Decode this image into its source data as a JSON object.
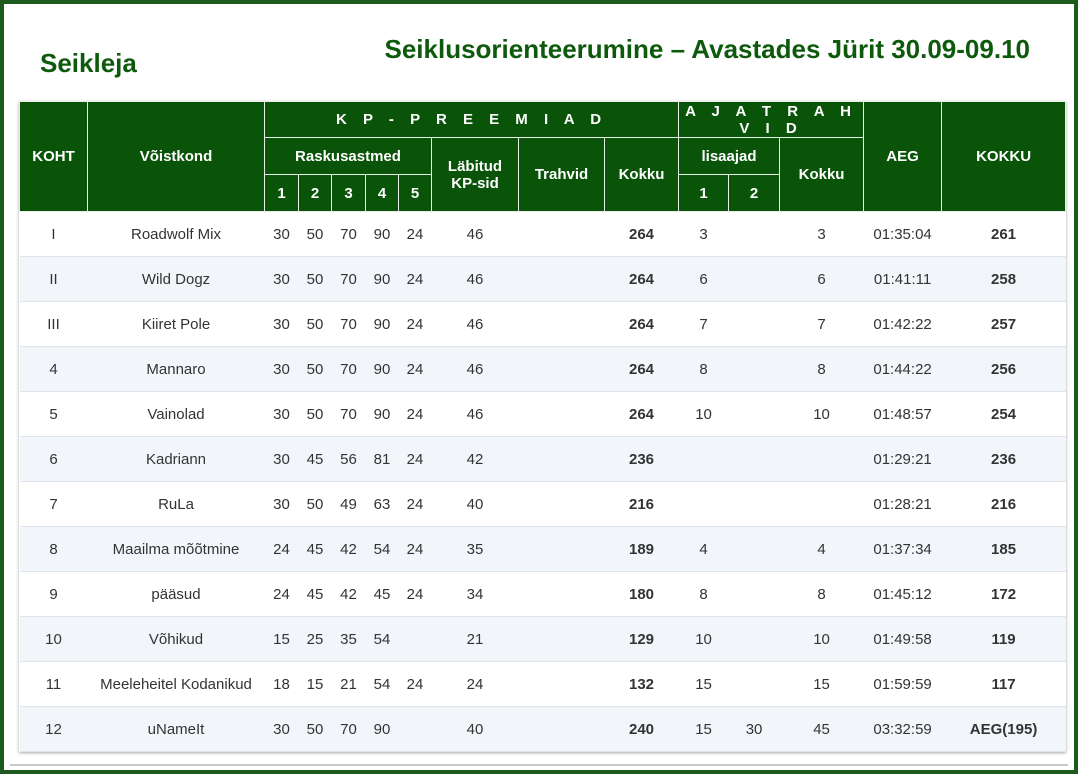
{
  "category": "Seikleja",
  "event_title": "Seiklusorienteerumine – Avastades Jürit 30.09-09.10",
  "headers": {
    "koht": "KOHT",
    "voistkond": "Võistkond",
    "kp_preemiad": "K P - P R E E M I A D",
    "ajatrahvid": "A J A T R A H V I D",
    "aeg": "AEG",
    "kokku_total": "KOKKU",
    "raskusastmed": "Raskusastmed",
    "labitud_1": "Läbitud",
    "labitud_2": "KP-sid",
    "trahvid": "Trahvid",
    "kokku": "Kokku",
    "lisaajad": "lisaajad",
    "kokku2": "Kokku",
    "r1": "1",
    "r2": "2",
    "r3": "3",
    "r4": "4",
    "r5": "5",
    "l1": "1",
    "l2": "2"
  },
  "rows": [
    {
      "koht": "I",
      "team": "Roadwolf Mix",
      "r1": "30",
      "r2": "50",
      "r3": "70",
      "r4": "90",
      "r5": "24",
      "labitud": "46",
      "trahvid": "",
      "kp_kokku": "264",
      "l1": "3",
      "l2": "",
      "aj_kokku": "3",
      "aeg": "01:35:04",
      "total": "261"
    },
    {
      "koht": "II",
      "team": "Wild Dogz",
      "r1": "30",
      "r2": "50",
      "r3": "70",
      "r4": "90",
      "r5": "24",
      "labitud": "46",
      "trahvid": "",
      "kp_kokku": "264",
      "l1": "6",
      "l2": "",
      "aj_kokku": "6",
      "aeg": "01:41:11",
      "total": "258"
    },
    {
      "koht": "III",
      "team": "Kiiret Pole",
      "r1": "30",
      "r2": "50",
      "r3": "70",
      "r4": "90",
      "r5": "24",
      "labitud": "46",
      "trahvid": "",
      "kp_kokku": "264",
      "l1": "7",
      "l2": "",
      "aj_kokku": "7",
      "aeg": "01:42:22",
      "total": "257"
    },
    {
      "koht": "4",
      "team": "Mannaro",
      "r1": "30",
      "r2": "50",
      "r3": "70",
      "r4": "90",
      "r5": "24",
      "labitud": "46",
      "trahvid": "",
      "kp_kokku": "264",
      "l1": "8",
      "l2": "",
      "aj_kokku": "8",
      "aeg": "01:44:22",
      "total": "256"
    },
    {
      "koht": "5",
      "team": "Vainolad",
      "r1": "30",
      "r2": "50",
      "r3": "70",
      "r4": "90",
      "r5": "24",
      "labitud": "46",
      "trahvid": "",
      "kp_kokku": "264",
      "l1": "10",
      "l2": "",
      "aj_kokku": "10",
      "aeg": "01:48:57",
      "total": "254"
    },
    {
      "koht": "6",
      "team": "Kadriann",
      "r1": "30",
      "r2": "45",
      "r3": "56",
      "r4": "81",
      "r5": "24",
      "labitud": "42",
      "trahvid": "",
      "kp_kokku": "236",
      "l1": "",
      "l2": "",
      "aj_kokku": "",
      "aeg": "01:29:21",
      "total": "236"
    },
    {
      "koht": "7",
      "team": "RuLa",
      "r1": "30",
      "r2": "50",
      "r3": "49",
      "r4": "63",
      "r5": "24",
      "labitud": "40",
      "trahvid": "",
      "kp_kokku": "216",
      "l1": "",
      "l2": "",
      "aj_kokku": "",
      "aeg": "01:28:21",
      "total": "216"
    },
    {
      "koht": "8",
      "team": "Maailma mõõtmine",
      "r1": "24",
      "r2": "45",
      "r3": "42",
      "r4": "54",
      "r5": "24",
      "labitud": "35",
      "trahvid": "",
      "kp_kokku": "189",
      "l1": "4",
      "l2": "",
      "aj_kokku": "4",
      "aeg": "01:37:34",
      "total": "185"
    },
    {
      "koht": "9",
      "team": "pääsud",
      "r1": "24",
      "r2": "45",
      "r3": "42",
      "r4": "45",
      "r5": "24",
      "labitud": "34",
      "trahvid": "",
      "kp_kokku": "180",
      "l1": "8",
      "l2": "",
      "aj_kokku": "8",
      "aeg": "01:45:12",
      "total": "172"
    },
    {
      "koht": "10",
      "team": "Võhikud",
      "r1": "15",
      "r2": "25",
      "r3": "35",
      "r4": "54",
      "r5": "",
      "labitud": "21",
      "trahvid": "",
      "kp_kokku": "129",
      "l1": "10",
      "l2": "",
      "aj_kokku": "10",
      "aeg": "01:49:58",
      "total": "119"
    },
    {
      "koht": "11",
      "team": "Meeleheitel Kodanikud",
      "r1": "18",
      "r2": "15",
      "r3": "21",
      "r4": "54",
      "r5": "24",
      "labitud": "24",
      "trahvid": "",
      "kp_kokku": "132",
      "l1": "15",
      "l2": "",
      "aj_kokku": "15",
      "aeg": "01:59:59",
      "total": "117"
    },
    {
      "koht": "12",
      "team": "uNameIt",
      "r1": "30",
      "r2": "50",
      "r3": "70",
      "r4": "90",
      "r5": "",
      "labitud": "40",
      "trahvid": "",
      "kp_kokku": "240",
      "l1": "15",
      "l2": "30",
      "aj_kokku": "45",
      "aeg": "03:32:59",
      "total": "AEG(195)"
    }
  ],
  "colors": {
    "header_green": "#0a540a",
    "title_green": "#0d5a0d",
    "row_stripe": "#f2f6fb"
  }
}
